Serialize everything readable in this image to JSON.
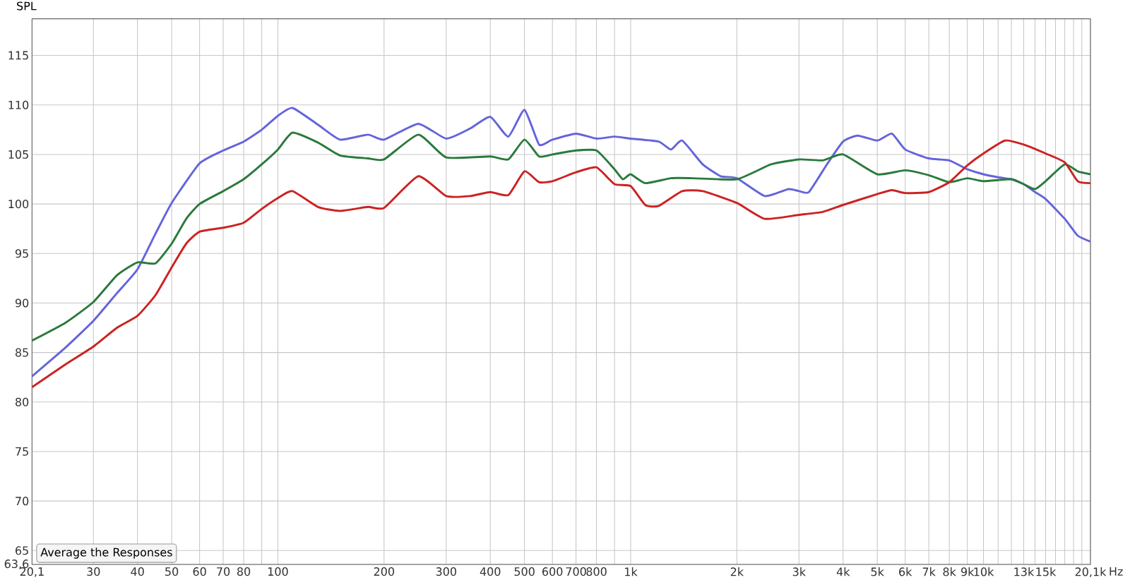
{
  "chart_data": {
    "type": "line",
    "ylabel": "SPL",
    "log": "x",
    "grid": true,
    "marker": "none",
    "line_style": "solid",
    "xlim": [
      20.1,
      20100
    ],
    "ylim": [
      63.6,
      118.7
    ],
    "xticks": [
      {
        "value": 20.1,
        "label": "20,1"
      },
      30,
      40,
      50,
      60,
      70,
      80,
      {
        "value": 90,
        "label": null
      },
      100,
      200,
      300,
      400,
      500,
      600,
      700,
      800,
      {
        "value": 900,
        "label": null
      },
      {
        "value": 1000,
        "label": "1k"
      },
      {
        "value": 2000,
        "label": "2k"
      },
      {
        "value": 3000,
        "label": "3k"
      },
      {
        "value": 4000,
        "label": "4k"
      },
      {
        "value": 5000,
        "label": "5k"
      },
      {
        "value": 6000,
        "label": "6k"
      },
      {
        "value": 7000,
        "label": "7k"
      },
      {
        "value": 8000,
        "label": "8k"
      },
      {
        "value": 9000,
        "label": "9k"
      },
      {
        "value": 10000,
        "label": "10k"
      },
      {
        "value": 11000,
        "label": null
      },
      {
        "value": 12000,
        "label": null
      },
      {
        "value": 13000,
        "label": "13k"
      },
      {
        "value": 14000,
        "label": null
      },
      {
        "value": 15000,
        "label": "15k"
      },
      {
        "value": 16000,
        "label": null
      },
      {
        "value": 17000,
        "label": null
      },
      {
        "value": 18000,
        "label": null
      },
      {
        "value": 19000,
        "label": null
      },
      {
        "value": 20100,
        "label": "20,1k"
      }
    ],
    "xlabel": "Hz",
    "yticks": [
      {
        "value": 63.6,
        "label": "63,6"
      },
      65,
      70,
      75,
      80,
      85,
      90,
      95,
      100,
      105,
      110,
      115
    ],
    "annotations": [
      "Average the Responses"
    ],
    "series": [
      {
        "color": "#6464dc",
        "x": [
          20.1,
          25,
          30,
          35,
          40,
          45,
          50,
          60,
          70,
          80,
          90,
          100,
          110,
          130,
          150,
          180,
          200,
          250,
          300,
          350,
          400,
          450,
          500,
          550,
          600,
          700,
          800,
          900,
          1000,
          1200,
          1300,
          1400,
          1600,
          1800,
          2000,
          2400,
          2800,
          3000,
          3200,
          3600,
          4000,
          4400,
          5000,
          5500,
          6000,
          7000,
          8000,
          9000,
          10000,
          11000,
          12000,
          13000,
          14000,
          15000,
          17000,
          18500,
          20100
        ],
        "values": [
          82.6,
          85.5,
          88.2,
          91,
          93.4,
          97,
          100.1,
          104.1,
          105.4,
          106.3,
          107.5,
          108.9,
          109.7,
          108,
          106.5,
          107,
          106.5,
          108.1,
          106.6,
          107.6,
          108.8,
          106.8,
          109.5,
          106,
          106.5,
          107.1,
          106.6,
          106.8,
          106.6,
          106.3,
          105.5,
          106.4,
          104,
          102.8,
          102.6,
          100.8,
          101.5,
          101.3,
          101.2,
          104,
          106.3,
          106.9,
          106.4,
          107.1,
          105.5,
          104.6,
          104.4,
          103.5,
          103,
          102.7,
          102.5,
          102,
          101.2,
          100.5,
          98.5,
          96.8,
          96.2
        ]
      },
      {
        "color": "#2a7a3c",
        "x": [
          20.1,
          25,
          30,
          35,
          40,
          45,
          50,
          55,
          60,
          70,
          80,
          90,
          100,
          110,
          130,
          150,
          180,
          200,
          250,
          300,
          400,
          450,
          500,
          550,
          600,
          700,
          800,
          900,
          950,
          1000,
          1100,
          1300,
          1500,
          2000,
          2500,
          3000,
          3500,
          4000,
          5000,
          6000,
          7000,
          8000,
          9000,
          10000,
          12000,
          13000,
          14000,
          15000,
          17000,
          18500,
          20100
        ],
        "values": [
          86.2,
          88,
          90.1,
          92.8,
          94.1,
          94,
          96,
          98.5,
          100,
          101.3,
          102.5,
          104,
          105.5,
          107.2,
          106.2,
          104.9,
          104.6,
          104.5,
          107,
          104.7,
          104.8,
          104.5,
          106.5,
          104.8,
          105,
          105.4,
          105.4,
          103.5,
          102.5,
          103,
          102.1,
          102.6,
          102.6,
          102.5,
          104,
          104.5,
          104.4,
          105,
          103,
          103.4,
          102.9,
          102.2,
          102.6,
          102.3,
          102.5,
          102,
          101.5,
          102.3,
          104,
          103.3,
          103
        ]
      },
      {
        "color": "#cc2222",
        "x": [
          20.1,
          25,
          30,
          35,
          40,
          45,
          50,
          55,
          60,
          70,
          80,
          90,
          100,
          110,
          130,
          150,
          180,
          200,
          250,
          300,
          350,
          400,
          450,
          500,
          550,
          600,
          700,
          800,
          900,
          1000,
          1100,
          1200,
          1400,
          1600,
          2000,
          2400,
          3000,
          3500,
          4000,
          5000,
          5500,
          6000,
          7000,
          8000,
          9000,
          10000,
          11500,
          13000,
          15000,
          17000,
          18500,
          20100
        ],
        "values": [
          81.5,
          83.8,
          85.6,
          87.5,
          88.7,
          90.8,
          93.6,
          96,
          97.2,
          97.6,
          98.1,
          99.5,
          100.6,
          101.3,
          99.7,
          99.3,
          99.7,
          99.6,
          102.8,
          100.8,
          100.8,
          101.2,
          100.9,
          103.3,
          102.2,
          102.3,
          103.2,
          103.7,
          102,
          101.8,
          99.9,
          99.8,
          101.3,
          101.3,
          100.1,
          98.5,
          98.9,
          99.2,
          99.9,
          101,
          101.4,
          101.1,
          101.2,
          102.2,
          103.9,
          105.1,
          106.4,
          106,
          105.1,
          104.2,
          102.3,
          102.1
        ]
      }
    ]
  }
}
